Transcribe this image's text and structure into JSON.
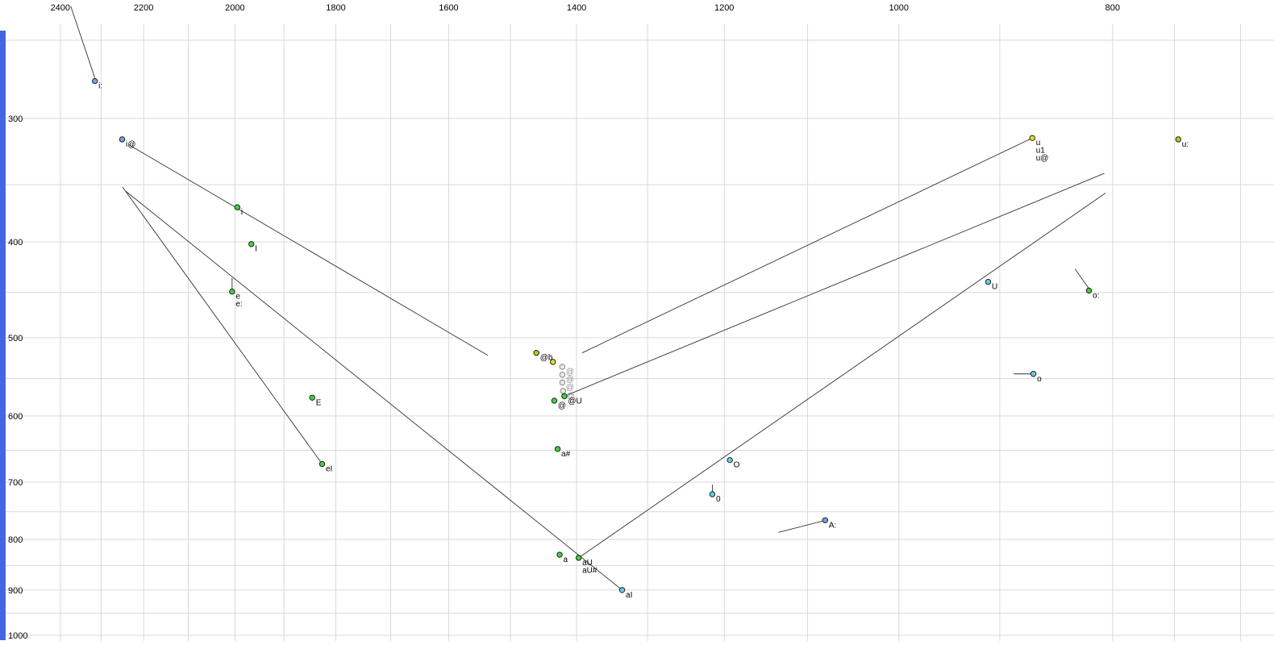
{
  "window": {
    "background": "#ffffff"
  },
  "left_bar": {
    "color": "#4566e0"
  },
  "chart_data": {
    "type": "scatter",
    "title": "",
    "xlabel": "",
    "ylabel": "",
    "grid": true,
    "grid_color": "#d9d9d9",
    "trajectory_color": "#333333",
    "x_axis": {
      "position": "top",
      "scale": "log",
      "direction": "F2 values decrease left to right",
      "ticks": [
        2400,
        2200,
        2000,
        1800,
        1600,
        1400,
        1200,
        1000,
        800
      ],
      "gridlines": [
        2400,
        2300,
        2200,
        2100,
        2000,
        1900,
        1800,
        1700,
        1600,
        1500,
        1400,
        1300,
        1200,
        1100,
        1000,
        900,
        800,
        750,
        700
      ],
      "range": [
        2470,
        690
      ]
    },
    "y_axis": {
      "position": "left",
      "scale": "log",
      "direction": "F1 values increase downward",
      "ticks": [
        300,
        400,
        500,
        600,
        700,
        800,
        900,
        1000
      ],
      "gridlines": [
        250,
        300,
        350,
        400,
        450,
        500,
        550,
        600,
        650,
        700,
        750,
        800,
        850,
        900,
        950,
        1000
      ],
      "range": [
        225,
        1015
      ]
    },
    "colors": {
      "blue": "#74a3e8",
      "cyan": "#5ed2e2",
      "green": "#3fd43f",
      "yellow": "#e3e312",
      "yellowgreen": "#a9d40e",
      "gray": "#e9e9e9"
    },
    "points": [
      {
        "labels": [
          "i:"
        ],
        "f1": 275,
        "f2": 2315,
        "color": "blue"
      },
      {
        "labels": [
          "i@"
        ],
        "f1": 315,
        "f2": 2250,
        "color": "blue"
      },
      {
        "labels": [
          "i"
        ],
        "f1": 369,
        "f2": 1995,
        "color": "green"
      },
      {
        "labels": [
          "I"
        ],
        "f1": 402,
        "f2": 1966,
        "color": "green"
      },
      {
        "labels": [
          "e",
          "e:"
        ],
        "f1": 449,
        "f2": 2006,
        "color": "green"
      },
      {
        "labels": [
          "E"
        ],
        "f1": 575,
        "f2": 1845,
        "color": "green"
      },
      {
        "labels": [
          "eI"
        ],
        "f1": 671,
        "f2": 1826,
        "color": "green"
      },
      {
        "labels": [
          "@b"
        ],
        "f1": 518,
        "f2": 1460,
        "color": "yellowgreen"
      },
      {
        "labels": [],
        "f1": 529,
        "f2": 1435,
        "color": "yellow"
      },
      {
        "labels": [
          "@"
        ],
        "f1": 535,
        "f2": 1421,
        "color": "gray",
        "label_color": "#8f8f8f"
      },
      {
        "labels": [
          "@"
        ],
        "f1": 545,
        "f2": 1421,
        "color": "gray",
        "label_color": "#8f8f8f"
      },
      {
        "labels": [
          "@"
        ],
        "f1": 555,
        "f2": 1421,
        "color": "gray",
        "label_color": "#8f8f8f"
      },
      {
        "labels": [
          "@"
        ],
        "f1": 566,
        "f2": 1420,
        "color": "gray",
        "label_color": "#8f8f8f"
      },
      {
        "labels": [
          "@"
        ],
        "f1": 579,
        "f2": 1433,
        "color": "green"
      },
      {
        "labels": [
          "@U"
        ],
        "f1": 573,
        "f2": 1418,
        "color": "green"
      },
      {
        "labels": [
          "a#"
        ],
        "f1": 648,
        "f2": 1428,
        "color": "green"
      },
      {
        "labels": [
          "a"
        ],
        "f1": 829,
        "f2": 1425,
        "color": "green"
      },
      {
        "labels": [
          "aU",
          "aU#"
        ],
        "f1": 835,
        "f2": 1397,
        "color": "green"
      },
      {
        "labels": [
          "aI"
        ],
        "f1": 900,
        "f2": 1335,
        "color": "cyan"
      },
      {
        "labels": [
          "0"
        ],
        "f1": 720,
        "f2": 1215,
        "color": "cyan"
      },
      {
        "labels": [
          "O"
        ],
        "f1": 665,
        "f2": 1193,
        "color": "cyan"
      },
      {
        "labels": [
          "A:"
        ],
        "f1": 765,
        "f2": 1080,
        "color": "blue"
      },
      {
        "labels": [
          "U"
        ],
        "f1": 439,
        "f2": 911,
        "color": "cyan"
      },
      {
        "labels": [
          "o"
        ],
        "f1": 544,
        "f2": 869,
        "color": "cyan"
      },
      {
        "labels": [
          "o:"
        ],
        "f1": 448,
        "f2": 820,
        "color": "green"
      },
      {
        "labels": [
          "u",
          "u1",
          "u@"
        ],
        "f1": 314,
        "f2": 870,
        "color": "yellow"
      },
      {
        "labels": [
          "u:"
        ],
        "f1": 315,
        "f2": 747,
        "color": "yellowgreen"
      }
    ],
    "trajectories": [
      {
        "name": "i: onset",
        "f2": [
          2374,
          2315
        ],
        "f1": [
          231,
          273
        ]
      },
      {
        "name": "i@",
        "f2": [
          2234,
          1536
        ],
        "f1": [
          319,
          521
        ]
      },
      {
        "name": "eI",
        "f2": [
          2249,
          1826
        ],
        "f1": [
          352,
          671
        ]
      },
      {
        "name": "aI",
        "f2": [
          2243,
          1335
        ],
        "f1": [
          355,
          900
        ]
      },
      {
        "name": "aU",
        "f2": [
          1397,
          806
        ],
        "f1": [
          835,
          357
        ]
      },
      {
        "name": "@U",
        "f2": [
          1418,
          807
        ],
        "f1": [
          573,
          341
        ]
      },
      {
        "name": "u1",
        "f2": [
          1392,
          870
        ],
        "f1": [
          518,
          314
        ]
      },
      {
        "name": "e:",
        "f2": [
          2006,
          2006
        ],
        "f1": [
          435,
          448
        ]
      },
      {
        "name": "o:",
        "f2": [
          832,
          820
        ],
        "f1": [
          426,
          446
        ]
      },
      {
        "name": "o",
        "f2": [
          887,
          869
        ],
        "f1": [
          544,
          544
        ]
      },
      {
        "name": "A:",
        "f2": [
          1134,
          1082
        ],
        "f1": [
          787,
          766
        ]
      },
      {
        "name": "0",
        "f2": [
          1215,
          1215
        ],
        "f1": [
          704,
          719
        ]
      }
    ]
  }
}
